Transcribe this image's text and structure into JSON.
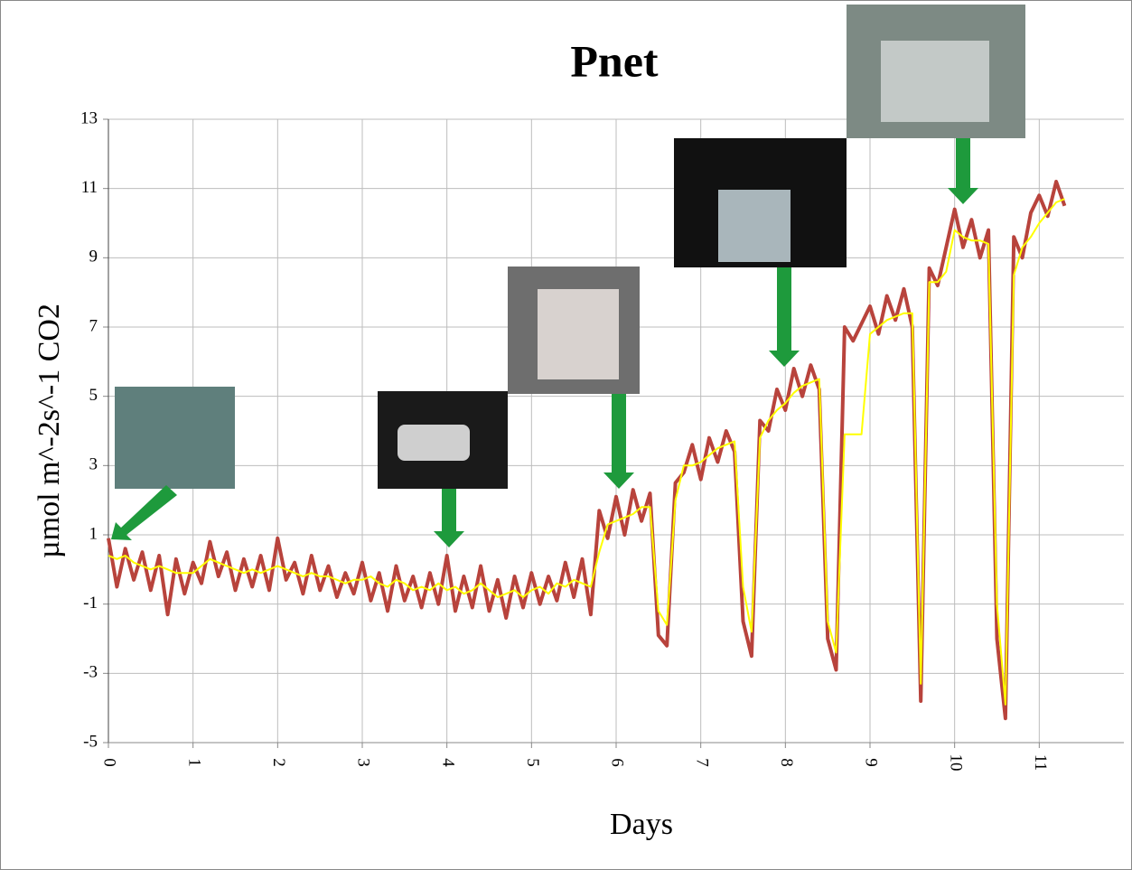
{
  "chart_data": {
    "type": "line",
    "title": "Pnet",
    "x_label": "Days",
    "y_label": "µmol m^-2s^-1  CO2",
    "xlim": [
      0,
      12
    ],
    "xticks": [
      0,
      1,
      2,
      3,
      4,
      5,
      6,
      7,
      8,
      9,
      10,
      11
    ],
    "ylim": [
      -5,
      13
    ],
    "yticks": [
      -5,
      -3,
      -1,
      1,
      3,
      5,
      7,
      9,
      11,
      13
    ],
    "grid": true,
    "x": [
      0,
      0.1,
      0.2,
      0.3,
      0.4,
      0.5,
      0.6,
      0.7,
      0.8,
      0.9,
      1,
      1.1,
      1.2,
      1.3,
      1.4,
      1.5,
      1.6,
      1.7,
      1.8,
      1.9,
      2,
      2.1,
      2.2,
      2.3,
      2.4,
      2.5,
      2.6,
      2.7,
      2.8,
      2.9,
      3,
      3.1,
      3.2,
      3.3,
      3.4,
      3.5,
      3.6,
      3.7,
      3.8,
      3.9,
      4,
      4.1,
      4.2,
      4.3,
      4.4,
      4.5,
      4.6,
      4.7,
      4.8,
      4.9,
      5,
      5.1,
      5.2,
      5.3,
      5.4,
      5.5,
      5.6,
      5.7,
      5.8,
      5.9,
      6,
      6.1,
      6.2,
      6.3,
      6.4,
      6.5,
      6.6,
      6.7,
      6.8,
      6.9,
      7,
      7.1,
      7.2,
      7.3,
      7.4,
      7.5,
      7.6,
      7.7,
      7.8,
      7.9,
      8,
      8.1,
      8.2,
      8.3,
      8.4,
      8.5,
      8.6,
      8.7,
      8.8,
      8.9,
      9,
      9.1,
      9.2,
      9.3,
      9.4,
      9.5,
      9.6,
      9.7,
      9.8,
      9.9,
      10,
      10.1,
      10.2,
      10.3,
      10.4,
      10.5,
      10.6,
      10.7,
      10.8,
      10.9,
      11,
      11.1,
      11.2,
      11.3
    ],
    "series": [
      {
        "color": "#b8433c",
        "values": [
          0.9,
          -0.5,
          0.6,
          -0.3,
          0.5,
          -0.6,
          0.4,
          -1.3,
          0.3,
          -0.7,
          0.2,
          -0.4,
          0.8,
          -0.2,
          0.5,
          -0.6,
          0.3,
          -0.5,
          0.4,
          -0.6,
          0.9,
          -0.3,
          0.2,
          -0.7,
          0.4,
          -0.6,
          0.1,
          -0.8,
          -0.1,
          -0.7,
          0.2,
          -0.9,
          -0.1,
          -1.2,
          0.1,
          -0.9,
          -0.2,
          -1.1,
          -0.1,
          -1.0,
          0.4,
          -1.2,
          -0.2,
          -1.1,
          0.1,
          -1.2,
          -0.3,
          -1.4,
          -0.2,
          -1.1,
          -0.1,
          -1.0,
          -0.2,
          -0.9,
          0.2,
          -0.8,
          0.3,
          -1.3,
          1.7,
          0.9,
          2.1,
          1.0,
          2.3,
          1.4,
          2.2,
          -1.9,
          -2.2,
          2.5,
          2.8,
          3.6,
          2.6,
          3.8,
          3.1,
          4.0,
          3.4,
          -1.5,
          -2.5,
          4.3,
          4.0,
          5.2,
          4.6,
          5.8,
          5.0,
          5.9,
          5.2,
          -2.0,
          -2.9,
          7.0,
          6.6,
          7.1,
          7.6,
          6.8,
          7.9,
          7.2,
          8.1,
          7.0,
          -3.8,
          8.7,
          8.2,
          9.3,
          10.4,
          9.3,
          10.1,
          9.0,
          9.8,
          -2.0,
          -4.3,
          9.6,
          9.0,
          10.3,
          10.8,
          10.2,
          11.2,
          10.5
        ]
      },
      {
        "color": "#ffff00",
        "values": [
          0.4,
          0.3,
          0.4,
          0.2,
          0.1,
          0.0,
          0.1,
          0.0,
          -0.1,
          -0.1,
          -0.1,
          0.1,
          0.3,
          0.2,
          0.1,
          0.0,
          -0.1,
          0.0,
          -0.1,
          0.0,
          0.1,
          0.0,
          -0.1,
          -0.2,
          -0.1,
          -0.2,
          -0.2,
          -0.3,
          -0.4,
          -0.3,
          -0.3,
          -0.2,
          -0.4,
          -0.5,
          -0.3,
          -0.4,
          -0.6,
          -0.5,
          -0.6,
          -0.4,
          -0.6,
          -0.5,
          -0.7,
          -0.6,
          -0.4,
          -0.6,
          -0.8,
          -0.7,
          -0.6,
          -0.8,
          -0.6,
          -0.5,
          -0.7,
          -0.4,
          -0.5,
          -0.3,
          -0.4,
          -0.5,
          0.5,
          1.3,
          1.4,
          1.5,
          1.6,
          1.8,
          1.8,
          -1.2,
          -1.6,
          2.0,
          3.0,
          3.0,
          3.1,
          3.3,
          3.5,
          3.6,
          3.7,
          -0.5,
          -1.8,
          3.8,
          4.3,
          4.6,
          4.8,
          5.1,
          5.3,
          5.4,
          5.5,
          -1.5,
          -2.4,
          3.9,
          3.9,
          3.9,
          6.8,
          7.0,
          7.2,
          7.3,
          7.4,
          7.4,
          -3.3,
          8.3,
          8.3,
          8.6,
          9.8,
          9.6,
          9.5,
          9.5,
          9.4,
          -1.0,
          -3.9,
          8.5,
          9.3,
          9.6,
          10.0,
          10.3,
          10.6,
          10.7
        ]
      }
    ]
  }
}
